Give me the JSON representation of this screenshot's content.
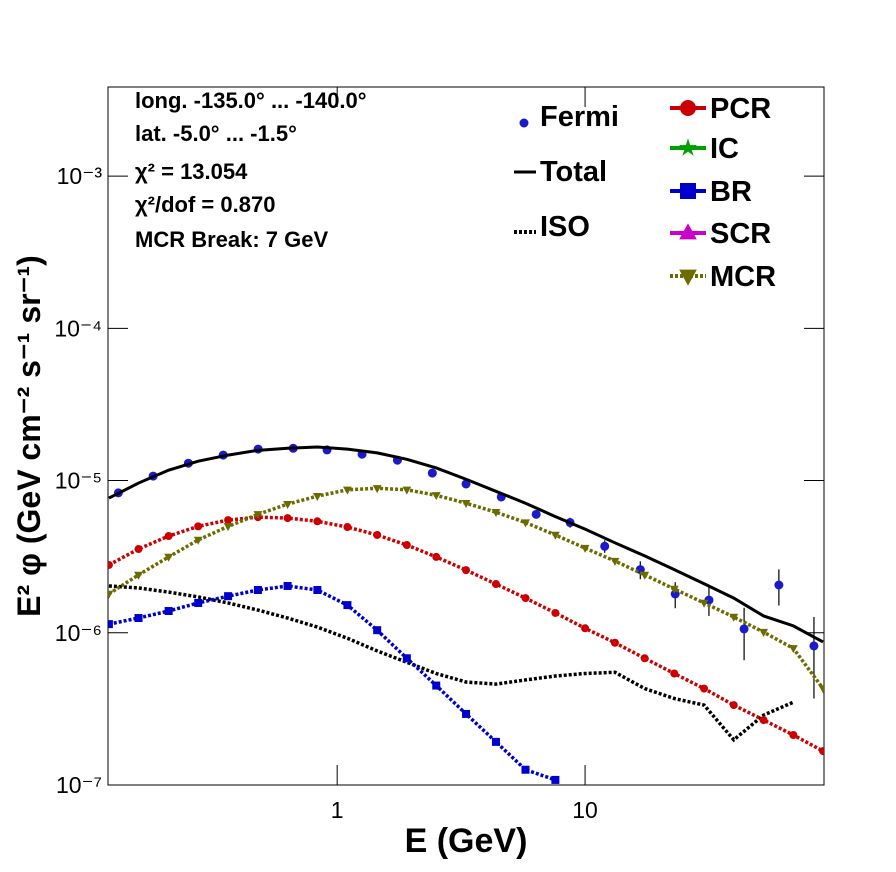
{
  "chart_data": {
    "type": "line",
    "x_label": "E (GeV)",
    "y_label": "E² φ (GeV cm⁻² s⁻¹ sr⁻¹)",
    "xlog": true,
    "ylog": true,
    "xlim": [
      0.119,
      92
    ],
    "ylim": [
      1e-07,
      0.00385
    ],
    "xticks": [
      1,
      10
    ],
    "yticks": [
      {
        "value": 1e-07,
        "label": "10⁻⁷"
      },
      {
        "value": 1e-06,
        "label": "10⁻⁶"
      },
      {
        "value": 1e-05,
        "label": "10⁻⁵"
      },
      {
        "value": 0.0001,
        "label": "10⁻⁴"
      },
      {
        "value": 0.001,
        "label": "10⁻³"
      }
    ],
    "annotations": [
      "long. -135.0° ... -140.0°",
      "lat. -5.0° ... -1.5°",
      "χ² = 13.054",
      "χ²/dof = 0.870",
      "MCR Break:  7 GeV"
    ],
    "x": [
      0.12,
      0.158,
      0.209,
      0.275,
      0.363,
      0.479,
      0.631,
      0.832,
      1.1,
      1.45,
      1.91,
      2.51,
      3.31,
      4.37,
      5.75,
      7.59,
      10.0,
      13.2,
      17.4,
      22.9,
      30.2,
      39.8,
      52.5,
      69.2,
      91.2
    ],
    "series": [
      {
        "name": "Fermi",
        "color": "#1a1acc",
        "style": "points",
        "x": [
          0.131,
          0.181,
          0.251,
          0.347,
          0.48,
          0.665,
          0.91,
          1.26,
          1.75,
          2.42,
          3.31,
          4.59,
          6.35,
          8.7,
          12.0,
          16.7,
          23.1,
          31.6,
          43.8,
          60.5,
          83.8
        ],
        "values": [
          8.3e-06,
          1.07e-05,
          1.3e-05,
          1.47e-05,
          1.61e-05,
          1.63e-05,
          1.59e-05,
          1.49e-05,
          1.36e-05,
          1.12e-05,
          9.5e-06,
          7.8e-06,
          6e-06,
          5.3e-06,
          3.7e-06,
          2.6e-06,
          1.8e-06,
          1.64e-06,
          1.06e-06,
          2.06e-06,
          8.2e-07
        ],
        "errors": [
          2e-07,
          2e-07,
          2e-07,
          2e-07,
          3e-07,
          3e-07,
          3e-07,
          3e-07,
          3e-07,
          3e-07,
          3e-07,
          3e-07,
          3e-07,
          4e-07,
          3.5e-07,
          3.5e-07,
          3.5e-07,
          3.5e-07,
          4e-07,
          5.5e-07,
          4.5e-07
        ]
      },
      {
        "name": "Total",
        "color": "#000000",
        "style": "solid",
        "values": [
          7.67e-06,
          9.63e-06,
          1.17e-05,
          1.34e-05,
          1.47e-05,
          1.58e-05,
          1.63e-05,
          1.66e-05,
          1.61e-05,
          1.52e-05,
          1.38e-05,
          1.21e-05,
          1.02e-05,
          8.5e-06,
          7.1e-06,
          5.8e-06,
          4.8e-06,
          3.9e-06,
          3.2e-06,
          2.6e-06,
          2.1e-06,
          1.69e-06,
          1.29e-06,
          1.11e-06,
          8.7e-07
        ]
      },
      {
        "name": "ISO",
        "color": "#000000",
        "style": "dotted",
        "values": [
          2.03e-06,
          1.97e-06,
          1.85e-06,
          1.72e-06,
          1.57e-06,
          1.41e-06,
          1.25e-06,
          1.09e-06,
          9.2e-07,
          7.6e-07,
          6.4e-07,
          5.4e-07,
          4.75e-07,
          4.6e-07,
          4.9e-07,
          5.2e-07,
          5.4e-07,
          5.5e-07,
          4.3e-07,
          3.7e-07,
          3.35e-07,
          1.98e-07,
          2.88e-07,
          3.5e-07,
          null
        ]
      },
      {
        "name": "PCR",
        "color": "#cc0000",
        "style": "markers",
        "marker": "circle",
        "values": [
          2.79e-06,
          3.55e-06,
          4.32e-06,
          5e-06,
          5.5e-06,
          5.75e-06,
          5.67e-06,
          5.4e-06,
          4.95e-06,
          4.39e-06,
          3.77e-06,
          3.15e-06,
          2.58e-06,
          2.09e-06,
          1.69e-06,
          1.35e-06,
          1.07e-06,
          8.6e-07,
          6.8e-07,
          5.4e-07,
          4.3e-07,
          3.35e-07,
          2.67e-07,
          2.13e-07,
          1.67e-07
        ]
      },
      {
        "name": "IC",
        "color": "#00a000",
        "style": "markers",
        "marker": "star",
        "values": [
          null,
          null,
          null,
          null,
          null,
          null,
          null,
          null,
          null,
          null,
          null,
          null,
          null,
          null,
          null,
          null,
          null,
          null,
          null,
          null,
          null,
          null,
          null,
          null,
          null
        ]
      },
      {
        "name": "BR",
        "color": "#0000cc",
        "style": "markers",
        "marker": "square",
        "values": [
          1.14e-06,
          1.25e-06,
          1.39e-06,
          1.57e-06,
          1.74e-06,
          1.91e-06,
          2.03e-06,
          1.91e-06,
          1.52e-06,
          1.04e-06,
          6.8e-07,
          4.5e-07,
          2.93e-07,
          1.92e-07,
          1.26e-07,
          1.08e-07,
          null,
          null,
          null,
          null,
          null,
          null,
          null,
          null,
          null
        ]
      },
      {
        "name": "SCR",
        "color": "#cc00cc",
        "style": "markers",
        "marker": "triangle-up",
        "values": [
          null,
          null,
          null,
          null,
          null,
          null,
          null,
          null,
          null,
          null,
          null,
          null,
          null,
          null,
          null,
          null,
          null,
          null,
          null,
          null,
          null,
          null,
          null,
          null,
          null
        ]
      },
      {
        "name": "MCR",
        "color": "#6b6b00",
        "style": "markers",
        "marker": "triangle-down",
        "values": [
          1.8e-06,
          2.4e-06,
          3.15e-06,
          4.07e-06,
          5e-06,
          6e-06,
          7e-06,
          7.9e-06,
          8.7e-06,
          8.9e-06,
          8.7e-06,
          8e-06,
          7.1e-06,
          6.2e-06,
          5.3e-06,
          4.39e-06,
          3.6e-06,
          2.96e-06,
          2.4e-06,
          1.94e-06,
          1.57e-06,
          1.27e-06,
          1.01e-06,
          7.9e-07,
          4.3e-07
        ]
      }
    ]
  }
}
